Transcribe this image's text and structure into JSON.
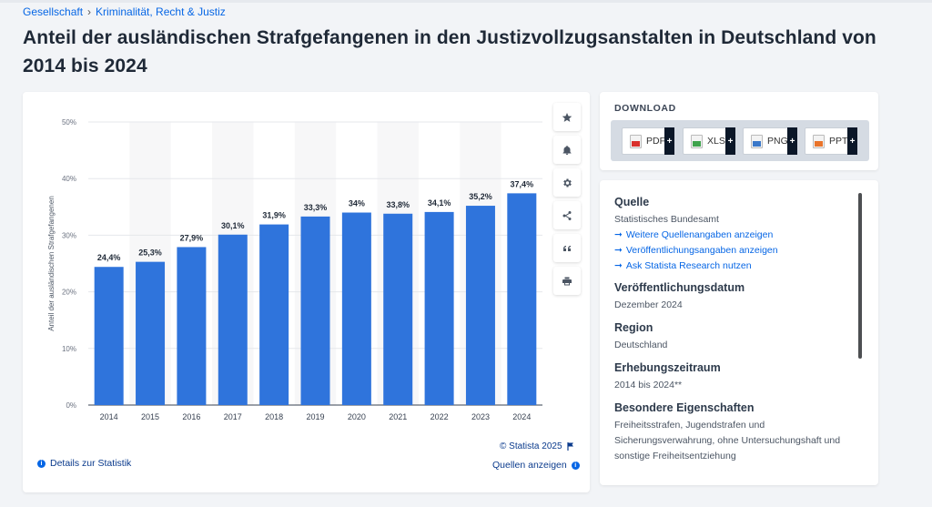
{
  "breadcrumb": {
    "items": [
      "Gesellschaft",
      "Kriminalität, Recht & Justiz"
    ],
    "separator": "›"
  },
  "title": "Anteil der ausländischen Strafgefangenen in den Justizvollzugsanstalten in Deutschland von 2014 bis 2024",
  "toolbar": {
    "icons": [
      "star-icon",
      "bell-icon",
      "gear-icon",
      "share-icon",
      "quote-icon",
      "print-icon"
    ]
  },
  "chart_data": {
    "type": "bar",
    "categories": [
      "2014",
      "2015",
      "2016",
      "2017",
      "2018",
      "2019",
      "2020",
      "2021",
      "2022",
      "2023",
      "2024"
    ],
    "values": [
      24.4,
      25.3,
      27.9,
      30.1,
      31.9,
      33.3,
      34,
      33.8,
      34.1,
      35.2,
      37.4
    ],
    "value_labels": [
      "24,4%",
      "25,3%",
      "27,9%",
      "30,1%",
      "31,9%",
      "33,3%",
      "34%",
      "33,8%",
      "34,1%",
      "35,2%",
      "37,4%"
    ],
    "ylabel": "Anteil der ausländischen Strafgefangenen",
    "ylim": [
      0,
      50
    ],
    "yticks": [
      0,
      10,
      20,
      30,
      40,
      50
    ],
    "ytick_labels": [
      "0%",
      "10%",
      "20%",
      "30%",
      "40%",
      "50%"
    ],
    "grid": true,
    "bar_color": "#2f74dc"
  },
  "footer": {
    "details_label": "Details zur Statistik",
    "copyright": "© Statista 2025",
    "sources_label": "Quellen anzeigen"
  },
  "download": {
    "title": "DOWNLOAD",
    "formats": [
      {
        "label": "PDF",
        "color": "#d9302c"
      },
      {
        "label": "XLS",
        "color": "#3fa34d"
      },
      {
        "label": "PNG",
        "color": "#3a78c9"
      },
      {
        "label": "PPT",
        "color": "#e9742b"
      }
    ],
    "plus": "+"
  },
  "info": {
    "source_heading": "Quelle",
    "source_name": "Statistisches Bundesamt",
    "links": [
      "Weitere Quellenangaben anzeigen",
      "Veröffentlichungsangaben anzeigen",
      "Ask Statista Research nutzen"
    ],
    "pub_date_heading": "Veröffentlichungsdatum",
    "pub_date": "Dezember 2024",
    "region_heading": "Region",
    "region": "Deutschland",
    "period_heading": "Erhebungszeitraum",
    "period": "2014 bis 2024**",
    "special_heading": "Besondere Eigenschaften",
    "special": "Freiheitsstrafen, Jugendstrafen und Sicherungsverwahrung, ohne Untersuchungshaft und sonstige Freiheitsentziehung"
  }
}
